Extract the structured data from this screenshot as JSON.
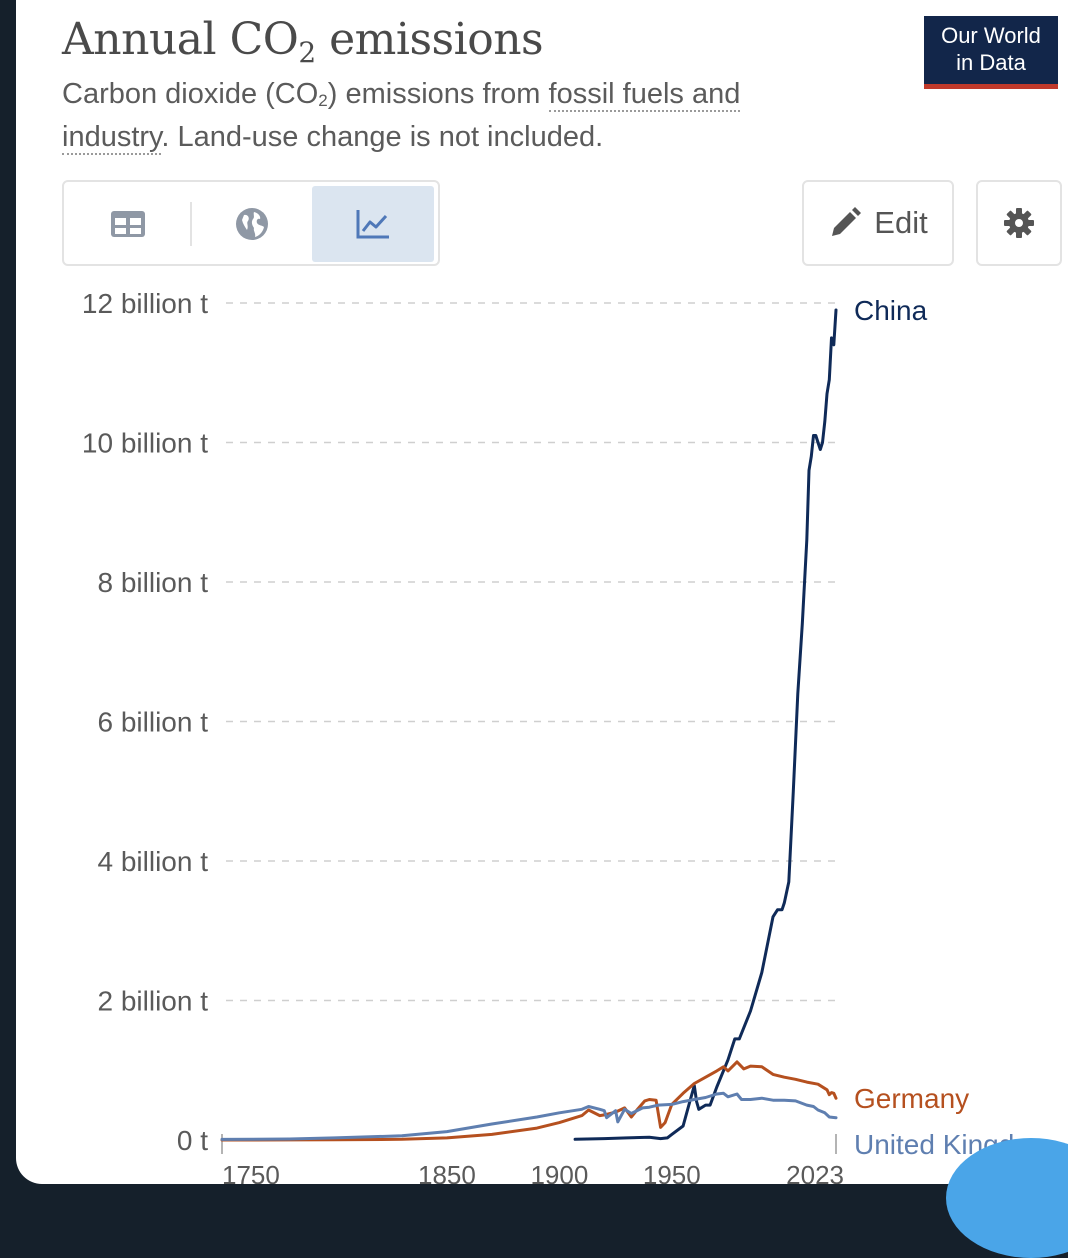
{
  "header": {
    "title_main": "Annual CO",
    "title_sub": "2",
    "title_rest": " emissions",
    "subtitle_a": "Carbon dioxide (CO",
    "subtitle_sub": "2",
    "subtitle_b": ") emissions from ",
    "subtitle_link1": "fossil fuels and industry",
    "subtitle_c": ". Land-use change is not included.",
    "logo_line1": "Our World",
    "logo_line2": "in Data"
  },
  "toolbar": {
    "tabs": [
      {
        "icon": "table-icon"
      },
      {
        "icon": "globe-icon"
      },
      {
        "icon": "line-chart-icon",
        "active": true
      }
    ],
    "edit_label": "Edit",
    "settings_icon": "gear-icon"
  },
  "colors": {
    "china": "#0f2a58",
    "germany": "#b5501f",
    "uk": "#5f7fb0",
    "grid": "#cfcfcf",
    "logo_bg": "#12264a",
    "logo_accent": "#c0392b"
  },
  "chart_data": {
    "type": "line",
    "ylim": [
      0,
      12
    ],
    "y_unit": "billion t",
    "y_ticks": [
      {
        "value": 0,
        "label": "0 t"
      },
      {
        "value": 2,
        "label": "2 billion t"
      },
      {
        "value": 4,
        "label": "4 billion t"
      },
      {
        "value": 6,
        "label": "6 billion t"
      },
      {
        "value": 8,
        "label": "8 billion t"
      },
      {
        "value": 10,
        "label": "10 billion t"
      },
      {
        "value": 12,
        "label": "12 billion t"
      }
    ],
    "xlim": [
      1750,
      2023
    ],
    "x_ticks": [
      {
        "value": 1750,
        "label": "1750"
      },
      {
        "value": 1850,
        "label": "1850"
      },
      {
        "value": 1900,
        "label": "1900"
      },
      {
        "value": 1950,
        "label": "1950"
      },
      {
        "value": 2023,
        "label": "2023"
      }
    ],
    "grid": true,
    "series": [
      {
        "name": "China",
        "color_key": "china",
        "points": [
          [
            1907,
            0.01
          ],
          [
            1920,
            0.02
          ],
          [
            1930,
            0.03
          ],
          [
            1940,
            0.04
          ],
          [
            1945,
            0.02
          ],
          [
            1948,
            0.03
          ],
          [
            1950,
            0.08
          ],
          [
            1955,
            0.2
          ],
          [
            1958,
            0.55
          ],
          [
            1960,
            0.78
          ],
          [
            1961,
            0.55
          ],
          [
            1962,
            0.44
          ],
          [
            1965,
            0.5
          ],
          [
            1967,
            0.5
          ],
          [
            1970,
            0.76
          ],
          [
            1975,
            1.15
          ],
          [
            1978,
            1.45
          ],
          [
            1980,
            1.45
          ],
          [
            1985,
            1.85
          ],
          [
            1990,
            2.4
          ],
          [
            1995,
            3.2
          ],
          [
            1997,
            3.3
          ],
          [
            1999,
            3.3
          ],
          [
            2000,
            3.4
          ],
          [
            2002,
            3.7
          ],
          [
            2004,
            5.0
          ],
          [
            2006,
            6.4
          ],
          [
            2008,
            7.4
          ],
          [
            2010,
            8.6
          ],
          [
            2011,
            9.6
          ],
          [
            2012,
            9.8
          ],
          [
            2013,
            10.1
          ],
          [
            2014,
            10.1
          ],
          [
            2015,
            10.0
          ],
          [
            2016,
            9.9
          ],
          [
            2017,
            10.0
          ],
          [
            2018,
            10.3
          ],
          [
            2019,
            10.7
          ],
          [
            2020,
            10.9
          ],
          [
            2021,
            11.5
          ],
          [
            2022,
            11.4
          ],
          [
            2023,
            11.9
          ]
        ]
      },
      {
        "name": "Germany",
        "color_key": "germany",
        "points": [
          [
            1750,
            0.0
          ],
          [
            1800,
            0.003
          ],
          [
            1830,
            0.01
          ],
          [
            1850,
            0.03
          ],
          [
            1870,
            0.08
          ],
          [
            1890,
            0.17
          ],
          [
            1900,
            0.25
          ],
          [
            1910,
            0.35
          ],
          [
            1913,
            0.43
          ],
          [
            1918,
            0.35
          ],
          [
            1920,
            0.36
          ],
          [
            1925,
            0.4
          ],
          [
            1929,
            0.46
          ],
          [
            1932,
            0.33
          ],
          [
            1935,
            0.45
          ],
          [
            1938,
            0.56
          ],
          [
            1940,
            0.58
          ],
          [
            1943,
            0.57
          ],
          [
            1945,
            0.18
          ],
          [
            1947,
            0.25
          ],
          [
            1950,
            0.51
          ],
          [
            1955,
            0.67
          ],
          [
            1960,
            0.81
          ],
          [
            1965,
            0.9
          ],
          [
            1970,
            0.99
          ],
          [
            1973,
            1.05
          ],
          [
            1975,
            0.99
          ],
          [
            1979,
            1.12
          ],
          [
            1982,
            1.02
          ],
          [
            1985,
            1.06
          ],
          [
            1990,
            1.05
          ],
          [
            1995,
            0.94
          ],
          [
            2000,
            0.9
          ],
          [
            2005,
            0.87
          ],
          [
            2010,
            0.83
          ],
          [
            2015,
            0.8
          ],
          [
            2019,
            0.72
          ],
          [
            2020,
            0.65
          ],
          [
            2021,
            0.68
          ],
          [
            2022,
            0.67
          ],
          [
            2023,
            0.6
          ]
        ]
      },
      {
        "name": "United Kingdor",
        "color_key": "uk",
        "points": [
          [
            1750,
            0.009
          ],
          [
            1780,
            0.015
          ],
          [
            1800,
            0.03
          ],
          [
            1830,
            0.06
          ],
          [
            1850,
            0.12
          ],
          [
            1870,
            0.23
          ],
          [
            1890,
            0.33
          ],
          [
            1900,
            0.39
          ],
          [
            1910,
            0.44
          ],
          [
            1913,
            0.48
          ],
          [
            1918,
            0.44
          ],
          [
            1920,
            0.42
          ],
          [
            1921,
            0.32
          ],
          [
            1925,
            0.42
          ],
          [
            1926,
            0.26
          ],
          [
            1929,
            0.44
          ],
          [
            1932,
            0.38
          ],
          [
            1937,
            0.46
          ],
          [
            1940,
            0.47
          ],
          [
            1944,
            0.5
          ],
          [
            1950,
            0.51
          ],
          [
            1955,
            0.55
          ],
          [
            1960,
            0.58
          ],
          [
            1965,
            0.61
          ],
          [
            1970,
            0.66
          ],
          [
            1973,
            0.67
          ],
          [
            1975,
            0.62
          ],
          [
            1979,
            0.66
          ],
          [
            1981,
            0.58
          ],
          [
            1985,
            0.58
          ],
          [
            1990,
            0.6
          ],
          [
            1995,
            0.57
          ],
          [
            2000,
            0.57
          ],
          [
            2005,
            0.56
          ],
          [
            2010,
            0.5
          ],
          [
            2013,
            0.48
          ],
          [
            2015,
            0.43
          ],
          [
            2018,
            0.39
          ],
          [
            2020,
            0.33
          ],
          [
            2023,
            0.32
          ]
        ]
      }
    ]
  }
}
